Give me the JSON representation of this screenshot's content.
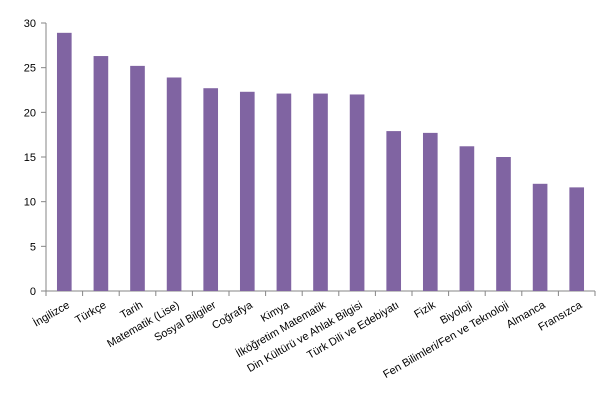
{
  "chart_data": {
    "type": "bar",
    "categories": [
      "İngilizce",
      "Türkçe",
      "Tarih",
      "Matematik (Lise)",
      "Sosyal Bilgiler",
      "Coğrafya",
      "Kimya",
      "İlköğretim Matematik",
      "Din Kültürü ve Ahlak Bilgisi",
      "Türk Dili ve Edebiyatı",
      "Fizik",
      "Biyoloji",
      "Fen Bilimleri/Fen ve Teknoloji",
      "Almanca",
      "Fransızca"
    ],
    "values": [
      28.9,
      26.3,
      25.2,
      23.9,
      22.7,
      22.3,
      22.1,
      22.1,
      22.0,
      17.9,
      17.7,
      16.2,
      15.0,
      12.0,
      11.6
    ],
    "title": "",
    "xlabel": "",
    "ylabel": "",
    "ylim": [
      0,
      30
    ],
    "yticks": [
      "0",
      "5",
      "10",
      "15",
      "20",
      "25",
      "30"
    ],
    "grid": false,
    "legend": "none",
    "bar_color": "#8064A2",
    "axis_color": "#868686"
  }
}
